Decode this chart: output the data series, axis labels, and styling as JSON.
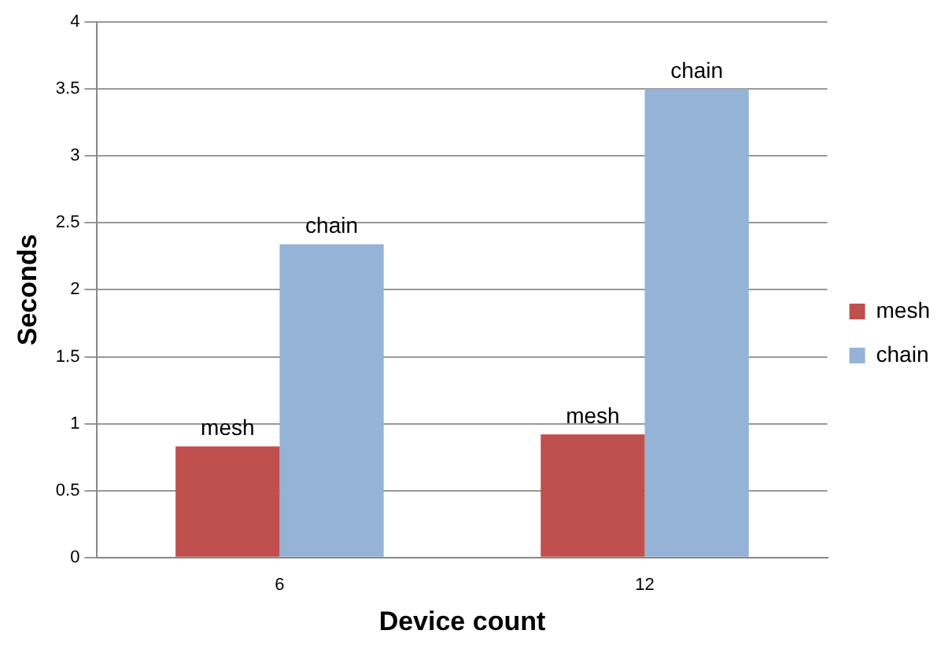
{
  "chart_data": {
    "type": "bar",
    "xlabel": "Device count",
    "ylabel": "Seconds",
    "categories": [
      "6",
      "12"
    ],
    "series": [
      {
        "name": "mesh",
        "color": "#c0504d",
        "values": [
          0.83,
          0.92
        ]
      },
      {
        "name": "chain",
        "color": "#95b3d7",
        "values": [
          2.34,
          3.5
        ]
      }
    ],
    "ylim": [
      0,
      4
    ],
    "yticks": [
      0,
      0.5,
      1,
      1.5,
      2,
      2.5,
      3,
      3.5,
      4
    ],
    "grid": "y",
    "legend": "right"
  }
}
